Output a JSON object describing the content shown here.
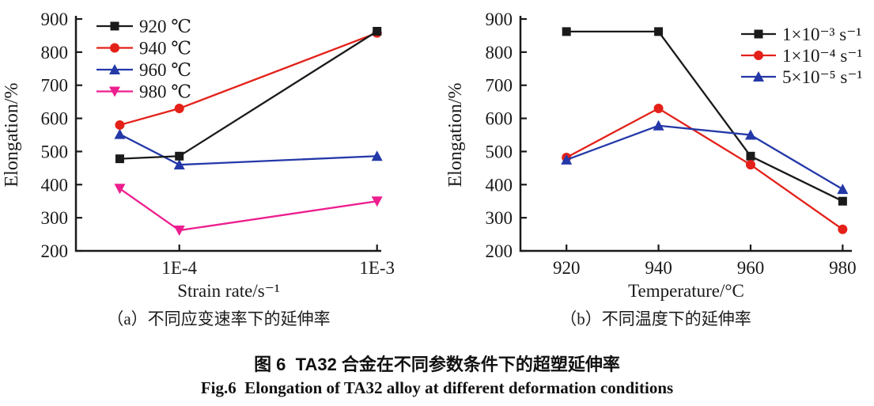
{
  "figure": {
    "caption_cn": "图 6  TA32 合金在不同参数条件下的超塑延伸率",
    "caption_en": "Fig.6  Elongation of TA32 alloy at different deformation conditions"
  },
  "colors": {
    "black": "#1a1a1a",
    "red": "#e32119",
    "blue": "#2438a8",
    "magenta": "#ed1e8e"
  },
  "chart_data": [
    {
      "id": "a",
      "type": "line",
      "caption": "（a）不同应变速率下的延伸率",
      "xlabel": "Strain rate/s⁻¹",
      "ylabel": "Elongation/%",
      "x_scale": "log",
      "xlim": [
        3e-05,
        0.00105
      ],
      "ylim": [
        200,
        900
      ],
      "grid": false,
      "legend_position": "top-left",
      "x": [
        5e-05,
        0.0001,
        0.001
      ],
      "x_ticks": [
        {
          "v": 0.0001,
          "label": "1E-4"
        },
        {
          "v": 0.001,
          "label": "1E-3"
        }
      ],
      "y_ticks": [
        200,
        300,
        400,
        500,
        600,
        700,
        800,
        900
      ],
      "series": [
        {
          "name": "920 ℃",
          "color": "#1a1a1a",
          "marker": "square",
          "values": [
            478,
            486,
            863
          ]
        },
        {
          "name": "940 ℃",
          "color": "#e32119",
          "marker": "circle",
          "values": [
            580,
            630,
            858
          ]
        },
        {
          "name": "960 ℃",
          "color": "#2438a8",
          "marker": "triangle-up",
          "values": [
            552,
            460,
            486
          ]
        },
        {
          "name": "980 ℃",
          "color": "#ed1e8e",
          "marker": "triangle-down",
          "values": [
            388,
            262,
            350
          ]
        }
      ]
    },
    {
      "id": "b",
      "type": "line",
      "caption": "（b）不同温度下的延伸率",
      "xlabel": "Temperature/°C",
      "ylabel": "Elongation/%",
      "x_scale": "linear",
      "xlim": [
        910,
        982
      ],
      "ylim": [
        200,
        900
      ],
      "grid": false,
      "legend_position": "top-right",
      "x": [
        920,
        940,
        960,
        980
      ],
      "x_ticks": [
        {
          "v": 920,
          "label": "920"
        },
        {
          "v": 940,
          "label": "940"
        },
        {
          "v": 960,
          "label": "960"
        },
        {
          "v": 980,
          "label": "980"
        }
      ],
      "y_ticks": [
        200,
        300,
        400,
        500,
        600,
        700,
        800,
        900
      ],
      "series": [
        {
          "name": "1×10⁻³ s⁻¹",
          "color": "#1a1a1a",
          "marker": "square",
          "values": [
            862,
            862,
            486,
            350
          ]
        },
        {
          "name": "1×10⁻⁴ s⁻¹",
          "color": "#e32119",
          "marker": "circle",
          "values": [
            482,
            630,
            460,
            265
          ]
        },
        {
          "name": "5×10⁻⁵ s⁻¹",
          "color": "#2438a8",
          "marker": "triangle-up",
          "values": [
            475,
            578,
            550,
            386
          ]
        }
      ]
    }
  ]
}
